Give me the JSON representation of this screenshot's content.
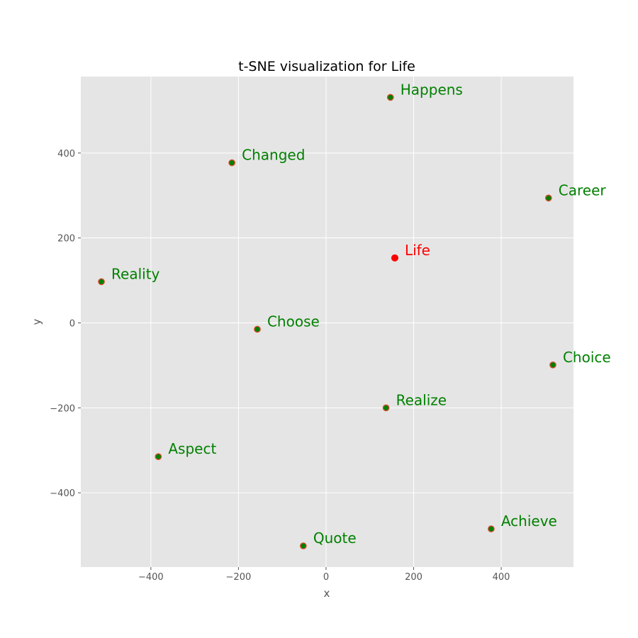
{
  "chart_data": {
    "type": "scatter",
    "title": "t-SNE visualization for Life",
    "xlabel": "x",
    "ylabel": "y",
    "xlim": [
      -560,
      565
    ],
    "ylim": [
      -575,
      580
    ],
    "xticks": [
      -400,
      -200,
      0,
      200,
      400
    ],
    "yticks": [
      -400,
      -200,
      0,
      200,
      400
    ],
    "grid": true,
    "colors": {
      "background": "#e5e5e5",
      "grid": "#ffffff",
      "highlight": "#ff0000",
      "point_fill": "#008000",
      "point_edge": "#e24a33",
      "label": "#008000"
    },
    "points": [
      {
        "label": "Life",
        "x": 157,
        "y": 153,
        "highlight": true
      },
      {
        "label": "Happens",
        "x": 147,
        "y": 531,
        "highlight": false
      },
      {
        "label": "Changed",
        "x": -215,
        "y": 377,
        "highlight": false
      },
      {
        "label": "Career",
        "x": 508,
        "y": 294,
        "highlight": false
      },
      {
        "label": "Reality",
        "x": -513,
        "y": 97,
        "highlight": false
      },
      {
        "label": "Choose",
        "x": -157,
        "y": -15,
        "highlight": false
      },
      {
        "label": "Choice",
        "x": 518,
        "y": -99,
        "highlight": false
      },
      {
        "label": "Realize",
        "x": 137,
        "y": -200,
        "highlight": false
      },
      {
        "label": "Aspect",
        "x": -383,
        "y": -315,
        "highlight": false
      },
      {
        "label": "Achieve",
        "x": 377,
        "y": -485,
        "highlight": false
      },
      {
        "label": "Quote",
        "x": -52,
        "y": -525,
        "highlight": false
      }
    ]
  }
}
